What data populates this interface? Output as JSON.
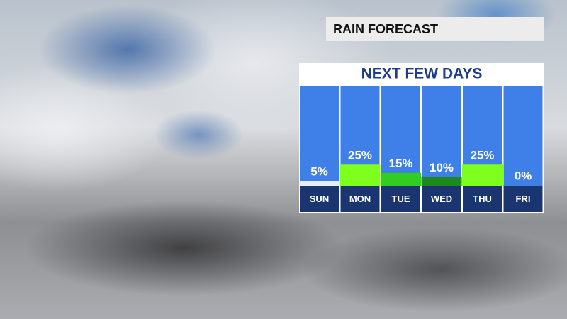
{
  "chart_data": {
    "type": "bar",
    "title": "RAIN FORECAST",
    "subtitle": "NEXT FEW DAYS",
    "categories": [
      "SUN",
      "MON",
      "TUE",
      "WED",
      "THU",
      "FRI"
    ],
    "values": [
      5,
      25,
      15,
      10,
      25,
      0
    ],
    "value_labels": [
      "5%",
      "25%",
      "15%",
      "10%",
      "25%",
      "0%"
    ],
    "colors": [
      "#e8eef8",
      "#7fff1e",
      "#33cc22",
      "#1e8a1e",
      "#7fff1e",
      "#e8eef8"
    ]
  }
}
